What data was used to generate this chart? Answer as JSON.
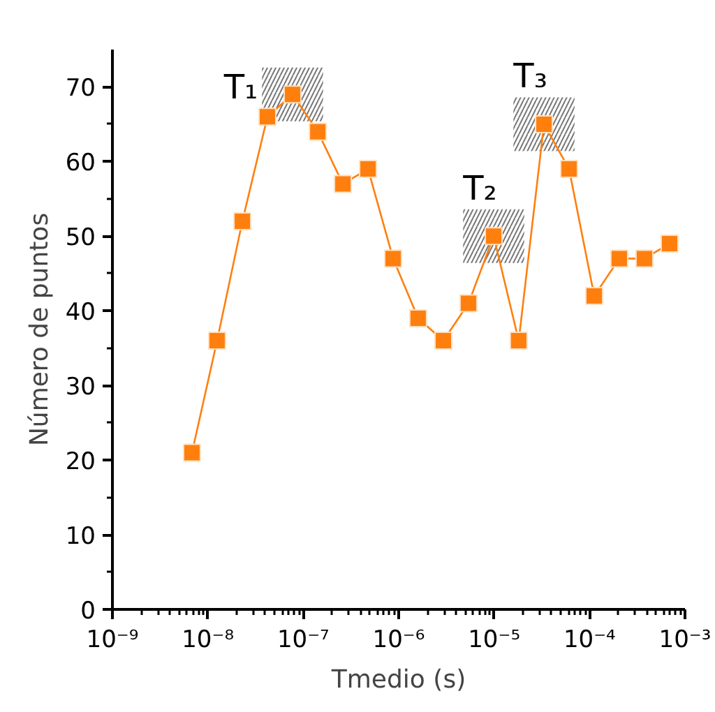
{
  "chart_data": {
    "type": "line",
    "xlabel": "Tmedio (s)",
    "ylabel": "Número de puntos",
    "x": [
      6.82e-09,
      1.25e-08,
      2.3e-08,
      4.21e-08,
      7.72e-08,
      1.42e-07,
      2.6e-07,
      4.77e-07,
      8.74e-07,
      1.6e-06,
      2.94e-06,
      5.39e-06,
      9.89e-06,
      1.81e-05,
      3.33e-05,
      6.1e-05,
      0.000112,
      0.000205,
      0.000376,
      0.00069
    ],
    "series": [
      {
        "color": "#ff7f0e",
        "values": [
          21,
          36,
          52,
          66,
          69,
          64,
          57,
          59,
          47,
          39,
          36,
          41,
          50,
          36,
          65,
          59,
          42,
          47,
          47,
          49
        ]
      }
    ],
    "marker": "square",
    "line_style": "solid",
    "log": "x",
    "grid": false,
    "xlim": [
      1e-09,
      0.001
    ],
    "ylim": [
      0,
      75
    ],
    "xticks": [
      {
        "value": 1e-09,
        "label": "10⁻⁹"
      },
      {
        "value": 1e-08,
        "label": "10⁻⁸"
      },
      {
        "value": 1e-07,
        "label": "10⁻⁷"
      },
      {
        "value": 1e-06,
        "label": "10⁻⁶"
      },
      {
        "value": 1e-05,
        "label": "10⁻⁵"
      },
      {
        "value": 0.0001,
        "label": "10⁻⁴"
      },
      {
        "value": 0.001,
        "label": "10⁻³"
      }
    ],
    "yticks": [
      0,
      10,
      20,
      30,
      40,
      50,
      60,
      70
    ],
    "annotations": [
      {
        "text": "T₁",
        "x": 7.72e-08,
        "y": 69
      },
      {
        "text": "T₂",
        "x": 9.89e-06,
        "y": 50
      },
      {
        "text": "T₃",
        "x": 3.33e-05,
        "y": 65
      }
    ]
  }
}
